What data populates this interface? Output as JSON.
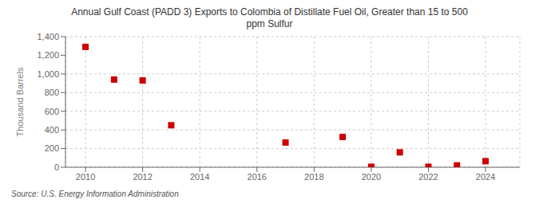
{
  "chart_data": {
    "type": "scatter",
    "title": "Annual Gulf Coast (PADD 3) Exports to Colombia of Distillate Fuel Oil, Greater than 15 to 500\nppm Sulfur",
    "ylabel": "Thousand Barrels",
    "annotations": [
      "Source: U.S. Energy Information Administration"
    ],
    "x": [
      2010,
      2011,
      2012,
      2013,
      2017,
      2019,
      2020,
      2021,
      2022,
      2023,
      2024
    ],
    "values": [
      1290,
      940,
      930,
      450,
      265,
      325,
      5,
      160,
      5,
      20,
      65
    ],
    "color": "#cc0000",
    "marker": "square",
    "xlim": [
      2009.3,
      2025.2
    ],
    "ylim": [
      0,
      1400
    ],
    "xticks": [
      2010,
      2012,
      2014,
      2016,
      2018,
      2020,
      2022,
      2024
    ],
    "yticks": [
      0,
      200,
      400,
      600,
      800,
      {
        "value": 1000,
        "label": "1,000"
      },
      {
        "value": 1200,
        "label": "1,200"
      },
      {
        "value": 1400,
        "label": "1,400"
      }
    ],
    "grid": true
  }
}
